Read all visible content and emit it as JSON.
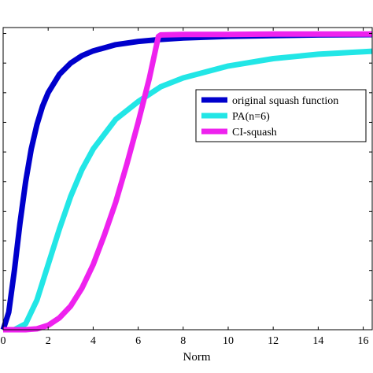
{
  "chart_data": {
    "type": "line",
    "title": "",
    "xlabel": "Norm",
    "ylabel": "",
    "xlim": [
      0,
      16.4
    ],
    "ylim": [
      0,
      1.02
    ],
    "grid": false,
    "legend_position": "middle-right",
    "x_ticks": [
      0,
      2,
      4,
      6,
      8,
      10,
      12,
      14,
      16
    ],
    "x_tick_labels": [
      "0",
      "2",
      "4",
      "6",
      "8",
      "10",
      "12",
      "14",
      "16"
    ],
    "y_ticks": [
      0.1,
      0.2,
      0.3,
      0.4,
      0.5,
      0.6,
      0.7,
      0.8,
      0.9,
      1.0
    ],
    "series": [
      {
        "name": "original squash function",
        "color": "#0000cc",
        "x": [
          0,
          0.25,
          0.5,
          0.75,
          1,
          1.25,
          1.5,
          1.75,
          2,
          2.5,
          3,
          3.5,
          4,
          5,
          6,
          7,
          8,
          10,
          12,
          14,
          16.4
        ],
        "y": [
          0,
          0.059,
          0.2,
          0.36,
          0.5,
          0.61,
          0.692,
          0.754,
          0.8,
          0.862,
          0.9,
          0.925,
          0.941,
          0.962,
          0.973,
          0.98,
          0.985,
          0.99,
          0.993,
          0.995,
          0.996
        ]
      },
      {
        "name": "PA(n=6)",
        "color": "#22e6e6",
        "x": [
          0,
          0.5,
          1,
          1.5,
          2,
          2.5,
          3,
          3.5,
          4,
          5,
          6,
          7,
          8,
          10,
          12,
          14,
          16.4
        ],
        "y": [
          0,
          0.0,
          0.02,
          0.1,
          0.22,
          0.34,
          0.45,
          0.54,
          0.61,
          0.71,
          0.77,
          0.82,
          0.85,
          0.89,
          0.915,
          0.93,
          0.94
        ]
      },
      {
        "name": "CI-squash",
        "color": "#ee22ee",
        "x": [
          0,
          1,
          1.5,
          2,
          2.5,
          3,
          3.5,
          4,
          4.5,
          5,
          5.5,
          6,
          6.5,
          6.9,
          7,
          8,
          10,
          12,
          14,
          16.4
        ],
        "y": [
          0,
          0.0,
          0.003,
          0.015,
          0.04,
          0.08,
          0.14,
          0.22,
          0.32,
          0.43,
          0.56,
          0.7,
          0.85,
          0.99,
          0.995,
          0.997,
          0.997,
          0.998,
          0.998,
          0.998
        ]
      }
    ]
  }
}
